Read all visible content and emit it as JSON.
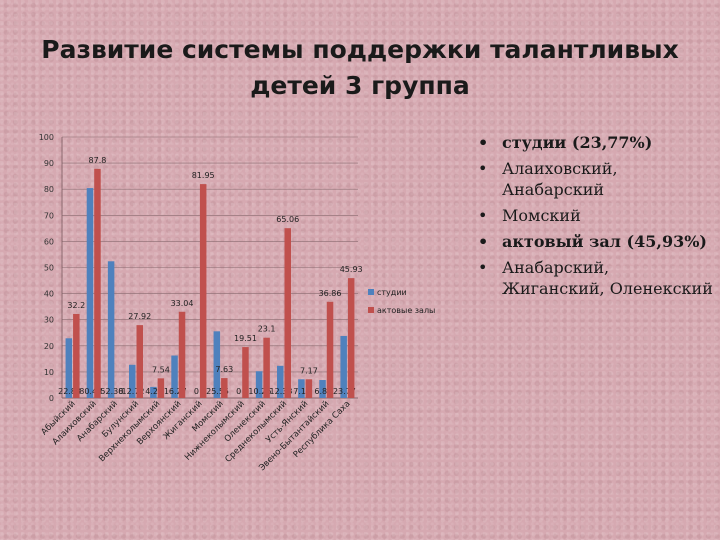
{
  "slide": {
    "title_line1": "Развитие системы поддержки талантливых",
    "title_line2": "детей 3 группа"
  },
  "bullets": [
    {
      "text": "студии (23,77%)",
      "bold": true
    },
    {
      "text": "Алаиховский, Анабарский",
      "bold": false
    },
    {
      "text": "Момский",
      "bold": false
    },
    {
      "text": "актовый зал (45,93%)",
      "bold": true
    },
    {
      "text": "Анабарский, Жиганский, Оленекский",
      "bold": false
    }
  ],
  "colors": {
    "studii": "#4f81bd",
    "akt": "#c0504d",
    "grid": "#8a6b70"
  },
  "chart_data": {
    "type": "bar",
    "title": "",
    "xlabel": "",
    "ylabel": "",
    "ylim": [
      0,
      100
    ],
    "yticks": [
      0,
      10,
      20,
      30,
      40,
      50,
      60,
      70,
      80,
      90,
      100
    ],
    "grid": true,
    "legend_position": "right",
    "categories": [
      "Абыйский",
      "Алаиховский",
      "Анабарский",
      "Булунский",
      "Верхнеколымский",
      "Верхоянский",
      "Жиганский",
      "Момский",
      "Нижнеколымский",
      "Оленекский",
      "Среднеколымский",
      "Усть-Янский",
      "Эвено-Бытантайский",
      "Республика Саха"
    ],
    "series": [
      {
        "name": "студии",
        "color": "#4f81bd",
        "values": [
          22.88,
          80.43,
          52.38,
          12.72,
          4.26,
          16.27,
          0,
          25.55,
          0,
          10.26,
          12.33,
          7.17,
          6.89,
          23.77
        ],
        "labels": [
          "22.88",
          "80.43",
          "52.38",
          "12.72",
          "4.26",
          "16.27",
          "0",
          "25.55",
          "0",
          "10.26",
          "12.33",
          "7.17",
          "6.89",
          "23.77"
        ]
      },
      {
        "name": "актовые залы",
        "color": "#c0504d",
        "values": [
          32.2,
          87.8,
          0,
          27.92,
          7.54,
          33.04,
          81.95,
          7.63,
          19.51,
          23.1,
          65.06,
          7.17,
          36.86,
          45.93
        ],
        "labels": [
          "32.2",
          "87.8",
          "0",
          "27.92",
          "7.54",
          "33.04",
          "81.95",
          "7.63",
          "19.51",
          "23.1",
          "65.06",
          "7.17",
          "36.86",
          "45.93"
        ]
      }
    ]
  }
}
